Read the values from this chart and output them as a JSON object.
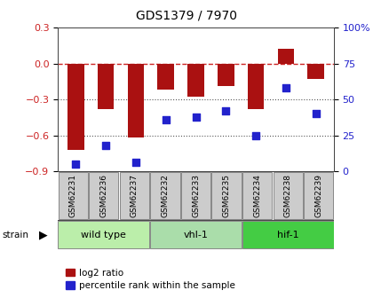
{
  "title": "GDS1379 / 7970",
  "samples": [
    "GSM62231",
    "GSM62236",
    "GSM62237",
    "GSM62232",
    "GSM62233",
    "GSM62235",
    "GSM62234",
    "GSM62238",
    "GSM62239"
  ],
  "log2_ratio": [
    -0.72,
    -0.38,
    -0.62,
    -0.22,
    -0.28,
    -0.19,
    -0.38,
    0.12,
    -0.13
  ],
  "percentile_rank": [
    5,
    18,
    6,
    36,
    38,
    42,
    25,
    58,
    40
  ],
  "strain_groups": [
    {
      "label": "wild type",
      "start": 0,
      "end": 3,
      "color": "#bbeeaa"
    },
    {
      "label": "vhl-1",
      "start": 3,
      "end": 6,
      "color": "#aaddaa"
    },
    {
      "label": "hif-1",
      "start": 6,
      "end": 9,
      "color": "#44cc44"
    }
  ],
  "bar_color": "#aa1111",
  "dot_color": "#2222cc",
  "ylim_left": [
    -0.9,
    0.3
  ],
  "ylim_right": [
    0,
    100
  ],
  "yticks_left": [
    -0.9,
    -0.6,
    -0.3,
    0.0,
    0.3
  ],
  "yticks_right": [
    0,
    25,
    50,
    75,
    100
  ],
  "ytick_labels_right": [
    "0",
    "25",
    "50",
    "75",
    "100%"
  ],
  "hline_color": "#cc2222",
  "dotted_line_color": "#555555",
  "bg_color": "#ffffff",
  "legend_red_label": "log2 ratio",
  "legend_blue_label": "percentile rank within the sample",
  "sample_box_color": "#cccccc",
  "title_fontsize": 10
}
